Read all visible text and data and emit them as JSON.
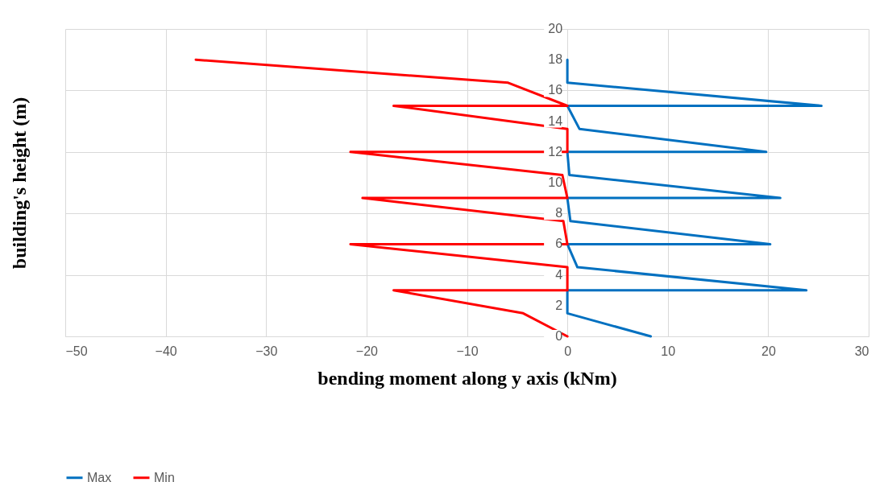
{
  "chart_data": {
    "type": "line",
    "xlabel": "bending moment along y axis (kNm)",
    "ylabel": "building's height (m)",
    "xlim": [
      -50,
      30
    ],
    "xticks": [
      -50,
      -40,
      -30,
      -20,
      -10,
      0,
      10,
      20,
      30
    ],
    "ylim": [
      0,
      20
    ],
    "yticks": [
      0,
      2,
      4,
      6,
      8,
      10,
      12,
      14,
      16,
      18,
      20
    ],
    "grid": true,
    "legend": "bottom",
    "marker": "none",
    "line_style": "solid",
    "series": [
      {
        "name": "Max",
        "color": "#0070c0",
        "x": [
          8.3,
          0,
          0,
          23.8,
          1,
          0,
          20.2,
          0.3,
          0,
          21.2,
          0.2,
          0,
          19.8,
          1.2,
          0,
          25.3,
          0,
          0
        ],
        "values": [
          0,
          1.5,
          3,
          3,
          4.5,
          6,
          6,
          7.5,
          9,
          9,
          10.5,
          12,
          12,
          13.5,
          15,
          15,
          16.5,
          18
        ]
      },
      {
        "name": "Min",
        "color": "#ff0000",
        "x": [
          0,
          -4.4,
          -17.3,
          0,
          0,
          -21.6,
          0,
          -0.4,
          -20.4,
          0,
          -0.5,
          -21.6,
          0,
          0,
          -17.3,
          0,
          -5.9,
          -37
        ],
        "values": [
          0,
          1.5,
          3,
          3,
          4.5,
          6,
          6,
          7.5,
          9,
          9,
          10.5,
          12,
          12,
          13.5,
          15,
          15,
          16.5,
          18
        ]
      }
    ]
  }
}
